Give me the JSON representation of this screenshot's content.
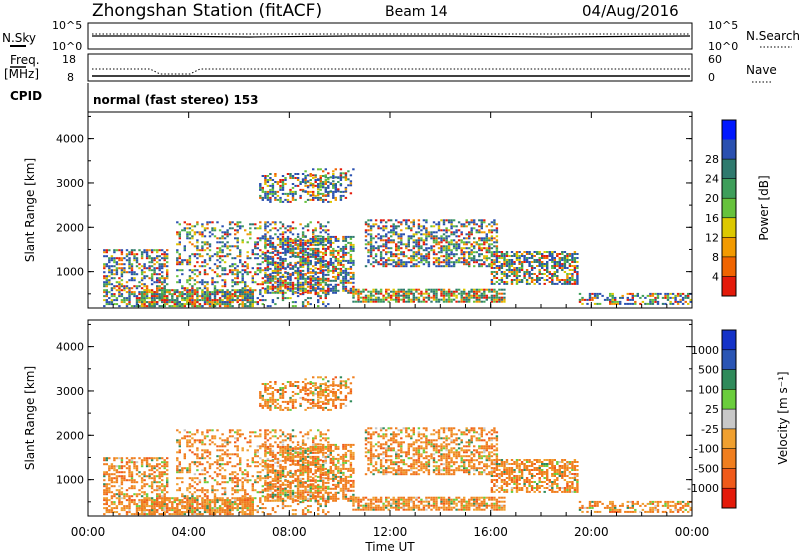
{
  "header": {
    "station": "Zhongshan Station (fitACF)",
    "beam": "Beam 14",
    "date": "04/Aug/2016"
  },
  "labels": {
    "nsky": "N.Sky",
    "nsearch": "N.Search",
    "freq_line1": "Freq.",
    "freq_line2": "[MHz]",
    "nave": "Nave",
    "cpid": "CPID",
    "cpid_text": "normal (fast stereo) 153",
    "nsky_tick_top": "10^5",
    "nsky_tick_bottom": "10^0",
    "nsearch_tick_top": "10^5",
    "nsearch_tick_bottom": "10^0",
    "freq_tick_top": "18",
    "freq_tick_bottom": "8",
    "nave_tick_top": "60",
    "nave_tick_bottom": "0"
  },
  "chart_data": [
    {
      "type": "heatmap",
      "panel": "power",
      "ylabel": "Slant Range [km]",
      "ylim": [
        180,
        4600
      ],
      "yticks": [
        "1000",
        "2000",
        "3000",
        "4000"
      ],
      "colorbar_label": "Power [dB]",
      "colorbar_ticks": [
        "4",
        "8",
        "12",
        "16",
        "20",
        "24",
        "28"
      ],
      "colorbar_colors": [
        "#0018ff",
        "#2a50b0",
        "#2f7a6e",
        "#3e9e5a",
        "#66c23c",
        "#dcc800",
        "#f29a00",
        "#f06400",
        "#e41a0a"
      ]
    },
    {
      "type": "heatmap",
      "panel": "velocity",
      "ylabel": "Slant Range [km]",
      "ylim": [
        180,
        4600
      ],
      "yticks": [
        "1000",
        "2000",
        "3000",
        "4000"
      ],
      "colorbar_label": "Velocity [m s⁻¹]",
      "colorbar_ticks": [
        "1000",
        "500",
        "100",
        "25",
        "-25",
        "-100",
        "-500",
        "-1000"
      ],
      "colorbar_colors": [
        "#1432c8",
        "#2a55b4",
        "#2f8a5a",
        "#6acd3c",
        "#c8c8c8",
        "#f0a030",
        "#f07e1e",
        "#f05a1a",
        "#e41a0a"
      ]
    }
  ],
  "xaxis": {
    "label": "Time UT",
    "ticks": [
      "00:00",
      "04:00",
      "08:00",
      "12:00",
      "16:00",
      "20:00",
      "00:00"
    ]
  }
}
